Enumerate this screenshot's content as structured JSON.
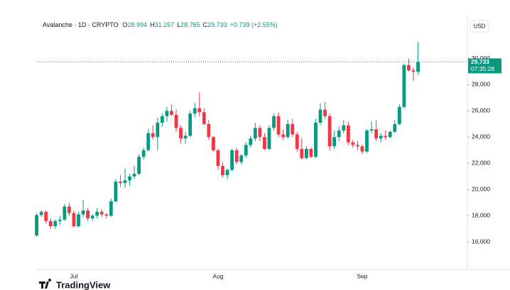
{
  "header": {
    "symbol": "Avalanche · 1D · CRYPTO",
    "ohlc": [
      {
        "label": "O",
        "value": "28.994"
      },
      {
        "label": "H",
        "value": "31.257"
      },
      {
        "label": "L",
        "value": "28.765"
      },
      {
        "label": "C",
        "value": "29.733"
      }
    ],
    "change": "+0.739 (+2.55%)"
  },
  "currency": "USD",
  "brand": "TradingView",
  "chart_data": {
    "type": "candlestick",
    "categories": [
      null,
      null,
      null,
      null,
      null,
      null,
      null,
      null,
      "Jul",
      null,
      null,
      null,
      null,
      null,
      null,
      null,
      null,
      null,
      null,
      null,
      null,
      null,
      null,
      null,
      null,
      null,
      null,
      null,
      null,
      null,
      null,
      null,
      null,
      null,
      null,
      null,
      null,
      null,
      null,
      "Aug",
      null,
      null,
      null,
      null,
      null,
      null,
      null,
      null,
      null,
      null,
      null,
      null,
      null,
      null,
      null,
      null,
      null,
      null,
      null,
      null,
      null,
      null,
      null,
      null,
      null,
      null,
      null,
      null,
      null,
      null,
      "Sep",
      null,
      null,
      null,
      null,
      null,
      null,
      null,
      null,
      null,
      null,
      null,
      null
    ],
    "open": [
      16500,
      18050,
      18300,
      17600,
      17200,
      17600,
      17700,
      18700,
      18200,
      17200,
      18100,
      18400,
      17800,
      18000,
      18300,
      18100,
      18000,
      19100,
      20600,
      20500,
      20700,
      21000,
      21200,
      22500,
      23000,
      24300,
      24000,
      25100,
      25600,
      26000,
      25700,
      24700,
      23900,
      24100,
      25800,
      26200,
      25900,
      25000,
      24000,
      23000,
      21800,
      21100,
      21500,
      23000,
      22100,
      22600,
      23400,
      23900,
      24700,
      24000,
      23100,
      24700,
      25600,
      24200,
      24000,
      25000,
      24200,
      23100,
      22400,
      23100,
      22500,
      25100,
      26100,
      25600,
      23300,
      24000,
      24500,
      24900,
      23600,
      23400,
      23300,
      22900,
      24500,
      24600,
      23900,
      24100,
      24000,
      24400,
      25000,
      26300,
      29500,
      29100,
      28994
    ],
    "high": [
      18200,
      18400,
      18400,
      17800,
      17700,
      18000,
      18900,
      19000,
      18400,
      18300,
      19200,
      18600,
      18100,
      18600,
      18500,
      18200,
      19300,
      20800,
      21100,
      21600,
      21200,
      21800,
      22700,
      23200,
      24600,
      24900,
      25500,
      25800,
      26300,
      26500,
      26100,
      24900,
      24400,
      26000,
      26600,
      27400,
      26200,
      25300,
      24100,
      23100,
      22100,
      21600,
      23100,
      23200,
      22700,
      23600,
      24100,
      25100,
      24900,
      24300,
      24900,
      25800,
      25900,
      24600,
      25300,
      25400,
      24400,
      23900,
      23300,
      23200,
      25400,
      26600,
      26700,
      25800,
      24500,
      24800,
      25300,
      25200,
      23800,
      23700,
      23400,
      24600,
      25200,
      25300,
      24300,
      24500,
      24500,
      25300,
      26500,
      29600,
      30000,
      29300,
      31257
    ],
    "low": [
      16400,
      17900,
      17400,
      17000,
      17000,
      17300,
      17600,
      18000,
      17100,
      17100,
      17900,
      17600,
      17600,
      17800,
      17900,
      17800,
      17900,
      19000,
      20200,
      20100,
      20300,
      20800,
      21100,
      22300,
      22900,
      23800,
      23000,
      24800,
      25200,
      25600,
      24400,
      23500,
      23500,
      24000,
      25500,
      25600,
      24900,
      23800,
      22900,
      21500,
      20900,
      20800,
      21400,
      21900,
      21900,
      22400,
      23200,
      23700,
      23700,
      23000,
      23000,
      24500,
      24000,
      23800,
      23900,
      24000,
      22900,
      22300,
      22300,
      22400,
      22400,
      24900,
      25400,
      23000,
      23100,
      23700,
      24300,
      23400,
      23200,
      23000,
      22700,
      22800,
      24300,
      23700,
      23600,
      23800,
      23900,
      24300,
      24900,
      26200,
      29000,
      28300,
      28765
    ],
    "close": [
      18050,
      18300,
      17600,
      17200,
      17600,
      17700,
      18700,
      18200,
      17200,
      18100,
      18400,
      17800,
      18000,
      18300,
      18100,
      18000,
      19100,
      20600,
      20500,
      20700,
      21000,
      21200,
      22500,
      23000,
      24300,
      24000,
      25100,
      25600,
      26000,
      25700,
      24700,
      23900,
      24100,
      25800,
      26200,
      25900,
      25000,
      24000,
      23000,
      21800,
      21100,
      21500,
      23000,
      22100,
      22600,
      23400,
      23900,
      24700,
      24000,
      23100,
      24700,
      25600,
      24200,
      24000,
      25000,
      24200,
      23100,
      22400,
      23100,
      22500,
      25100,
      26100,
      25600,
      23300,
      24000,
      24500,
      24900,
      23600,
      23400,
      23300,
      22900,
      24500,
      24600,
      23900,
      24100,
      24000,
      24400,
      25000,
      26300,
      29500,
      29100,
      28994,
      29733
    ],
    "up_color": "#089981",
    "down_color": "#f23645",
    "ylim": [
      13900,
      32300
    ],
    "yticks": [
      {
        "value": 16000,
        "label": "16,000"
      },
      {
        "value": 18000,
        "label": "18,000"
      },
      {
        "value": 20000,
        "label": "20,000"
      },
      {
        "value": 22000,
        "label": "22,000"
      },
      {
        "value": 24000,
        "label": "24,000"
      },
      {
        "value": 26000,
        "label": "26,000"
      },
      {
        "value": 28000,
        "label": "28,000"
      },
      {
        "value": 30000,
        "label": "30,000"
      }
    ],
    "last_value": 29733,
    "last_value_label": "29,733",
    "countdown": "07:35:28"
  }
}
